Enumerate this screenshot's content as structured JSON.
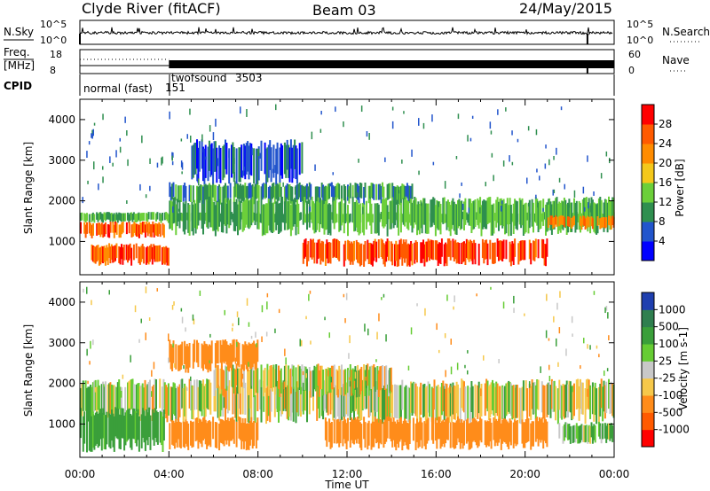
{
  "header": {
    "station": "Clyde River (fitACF)",
    "beam": "Beam 03",
    "date": "24/May/2015"
  },
  "nsky_panel": {
    "left_label": "N.Sky",
    "left_ticks": [
      "10^5",
      "10^0"
    ],
    "right_ticks": [
      "10^5",
      "10^0"
    ],
    "right_label": "N.Search"
  },
  "freq_panel": {
    "left_label_line1": "Freq.",
    "left_label_line2": "[MHz]",
    "left_ticks": [
      "18",
      "8"
    ],
    "right_ticks": [
      "60",
      "0"
    ],
    "right_label": "Nave"
  },
  "cpid_panel": {
    "label": "CPID",
    "programs": [
      {
        "name": "normal (fast)",
        "id": "151",
        "start": "00:00"
      },
      {
        "name": "twofsound",
        "id": "3503",
        "start": "04:00"
      }
    ]
  },
  "chart_data": [
    {
      "type": "heatmap",
      "name": "power",
      "xlabel": "",
      "ylabel": "Slant Range [km]",
      "yticks": [
        1000,
        2000,
        3000,
        4000
      ],
      "ylim": [
        180,
        4500
      ],
      "xlim_hours": [
        0,
        24
      ],
      "colorbar": {
        "label": "Power [dB]",
        "ticks": [
          "4",
          "8",
          "12",
          "16",
          "20",
          "24",
          "28"
        ],
        "colors": [
          "#0000ff",
          "#2255cc",
          "#2f8f4f",
          "#6ccf3a",
          "#f4c81b",
          "#ff8c00",
          "#ff5a00",
          "#ff0000"
        ]
      },
      "bands": [
        {
          "range_km": [
            1500,
            1700
          ],
          "t": [
            0,
            24
          ],
          "value": 12
        },
        {
          "range_km": [
            1150,
            1450
          ],
          "t": [
            0,
            3.8
          ],
          "value": 26
        },
        {
          "range_km": [
            500,
            900
          ],
          "t": [
            0.5,
            4.0
          ],
          "value": 26
        },
        {
          "range_km": [
            2000,
            2400
          ],
          "t": [
            4,
            15
          ],
          "value": 10
        },
        {
          "range_km": [
            1300,
            2000
          ],
          "t": [
            4,
            24
          ],
          "value": 12
        },
        {
          "range_km": [
            500,
            1000
          ],
          "t": [
            10,
            21
          ],
          "value": 27
        },
        {
          "range_km": [
            1350,
            1600
          ],
          "t": [
            21,
            24
          ],
          "value": 24
        },
        {
          "range_km": [
            2600,
            3400
          ],
          "t": [
            5,
            10
          ],
          "value": 6
        }
      ]
    },
    {
      "type": "heatmap",
      "name": "velocity",
      "xlabel": "Time UT",
      "ylabel": "Slant Range [km]",
      "yticks": [
        1000,
        2000,
        3000,
        4000
      ],
      "ylim": [
        180,
        4500
      ],
      "xlim_hours": [
        0,
        24
      ],
      "xticks": [
        "00:00",
        "04:00",
        "08:00",
        "12:00",
        "16:00",
        "20:00",
        "00:00"
      ],
      "colorbar": {
        "label": "Velocity [m s-1]",
        "ticks": [
          "1000",
          "500",
          "100",
          "25",
          "-25",
          "-100",
          "-500",
          "-1000"
        ],
        "colors": [
          "#1f3faf",
          "#2f7f4f",
          "#3a9f3a",
          "#66cc33",
          "#c8c8c8",
          "#f6c84a",
          "#ff8c1a",
          "#ff5a00",
          "#ff0000"
        ]
      },
      "bands": [
        {
          "range_km": [
            1200,
            2000
          ],
          "t": [
            0,
            24
          ],
          "value": 0
        },
        {
          "range_km": [
            500,
            1300
          ],
          "t": [
            0,
            3.8
          ],
          "value": 200
        },
        {
          "range_km": [
            500,
            1100
          ],
          "t": [
            4,
            8
          ],
          "value": -300
        },
        {
          "range_km": [
            500,
            1100
          ],
          "t": [
            11,
            21
          ],
          "value": -300
        },
        {
          "range_km": [
            1800,
            2400
          ],
          "t": [
            6,
            14
          ],
          "value": 0
        },
        {
          "range_km": [
            2400,
            3000
          ],
          "t": [
            4,
            8
          ],
          "value": -250
        },
        {
          "range_km": [
            600,
            1000
          ],
          "t": [
            21.5,
            24
          ],
          "value": 100
        }
      ]
    }
  ]
}
